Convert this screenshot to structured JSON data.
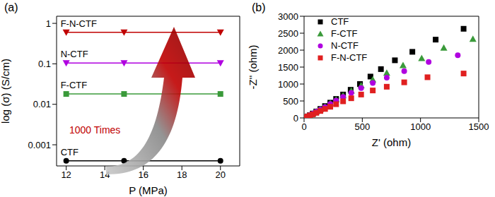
{
  "chart_data": [
    {
      "type": "line",
      "title": "(a)",
      "x_label": "P (MPa)",
      "y_label": "log (σ) (S/cm)",
      "annotation": "1000 Times",
      "x": [
        12,
        15,
        20
      ],
      "series": [
        {
          "name": "CTF",
          "color": "#000000",
          "marker": "circle",
          "values": [
            0.0004,
            0.0004,
            0.0004
          ]
        },
        {
          "name": "F-CTF",
          "color": "#3a9a3a",
          "marker": "square",
          "values": [
            0.018,
            0.018,
            0.018
          ]
        },
        {
          "name": "N-CTF",
          "color": "#b000e0",
          "marker": "triangle-down",
          "values": [
            0.105,
            0.105,
            0.105
          ]
        },
        {
          "name": "F-N-CTF",
          "color": "#c00000",
          "marker": "triangle-down",
          "values": [
            0.6,
            0.6,
            0.6
          ]
        }
      ],
      "xlim": [
        11.5,
        21
      ],
      "xticks": [
        12,
        14,
        16,
        18,
        20
      ],
      "ylim": [
        0.0003,
        1.5
      ],
      "yticks": [
        0.001,
        0.01,
        0.1,
        1
      ],
      "log": "y",
      "grid": false
    },
    {
      "type": "scatter",
      "title": "(b)",
      "x_label": "Z' (ohm)",
      "y_label": "-Z'' (ohm)",
      "series": [
        {
          "name": "CTF",
          "color": "#000000",
          "marker": "square",
          "x": [
            5,
            15,
            30,
            50,
            75,
            105,
            140,
            180,
            225,
            275,
            335,
            400,
            480,
            570,
            660,
            780,
            930,
            1130,
            1370
          ],
          "values": [
            5,
            20,
            45,
            80,
            130,
            190,
            265,
            350,
            450,
            560,
            690,
            830,
            1000,
            1220,
            1440,
            1700,
            1950,
            2310,
            2630
          ]
        },
        {
          "name": "F-CTF",
          "color": "#3a9a3a",
          "marker": "triangle",
          "x": [
            5,
            15,
            30,
            50,
            75,
            105,
            140,
            180,
            225,
            275,
            335,
            405,
            490,
            590,
            710,
            850,
            1010,
            1200,
            1450
          ],
          "values": [
            5,
            20,
            45,
            80,
            125,
            185,
            255,
            335,
            430,
            540,
            660,
            800,
            960,
            1130,
            1330,
            1550,
            1760,
            2070,
            2330
          ]
        },
        {
          "name": "N-CTF",
          "color": "#b000e0",
          "marker": "circle",
          "x": [
            5,
            15,
            30,
            50,
            75,
            105,
            140,
            180,
            225,
            275,
            335,
            405,
            490,
            590,
            710,
            860,
            1070,
            1320
          ],
          "values": [
            5,
            20,
            45,
            80,
            125,
            180,
            245,
            320,
            410,
            510,
            620,
            740,
            880,
            1030,
            1190,
            1380,
            1650,
            1850
          ]
        },
        {
          "name": "F-N-CTF",
          "color": "#e02020",
          "marker": "square",
          "x": [
            5,
            15,
            30,
            50,
            75,
            105,
            140,
            180,
            225,
            275,
            335,
            405,
            490,
            590,
            710,
            860,
            1060,
            1370
          ],
          "values": [
            4,
            18,
            40,
            70,
            105,
            150,
            205,
            265,
            330,
            405,
            490,
            580,
            690,
            810,
            920,
            1050,
            1200,
            1310
          ]
        }
      ],
      "xlim": [
        0,
        1500
      ],
      "xticks": [
        0,
        500,
        1000,
        1500
      ],
      "ylim": [
        0,
        3000
      ],
      "yticks": [
        0,
        500,
        1000,
        1500,
        2000,
        2500,
        3000
      ],
      "legend": "upper left",
      "grid": false
    }
  ]
}
